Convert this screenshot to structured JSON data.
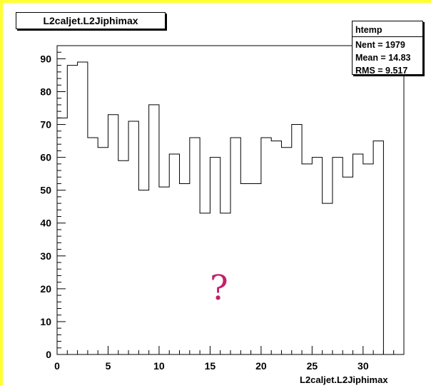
{
  "title": "L2caljet.L2Jiphimax",
  "stats": {
    "name": "htemp",
    "entries": "Nent = 1979",
    "mean": "Mean  =  14.83",
    "rms": "RMS    =  9.517"
  },
  "annotation": "?",
  "colors": {
    "frame_border": "#ffff33",
    "histogram_line": "#000000",
    "annotation": "#c2226a"
  },
  "chart_data": {
    "type": "bar",
    "style": "step-histogram",
    "title": "L2caljet.L2Jiphimax",
    "xlabel": "L2caljet.L2Jiphimax",
    "ylabel": "",
    "xlim": [
      0,
      34
    ],
    "ylim": [
      0,
      94
    ],
    "x_ticks": [
      0,
      5,
      10,
      15,
      20,
      25,
      30
    ],
    "y_ticks": [
      0,
      10,
      20,
      30,
      40,
      50,
      60,
      70,
      80,
      90
    ],
    "bin_width": 1,
    "bin_edges_start": 0,
    "values": [
      72,
      88,
      89,
      66,
      63,
      73,
      59,
      71,
      50,
      76,
      51,
      61,
      52,
      66,
      43,
      60,
      43,
      66,
      52,
      52,
      66,
      65,
      63,
      70,
      58,
      60,
      46,
      60,
      54,
      61,
      58,
      65
    ],
    "grid": false,
    "legend": "none"
  }
}
